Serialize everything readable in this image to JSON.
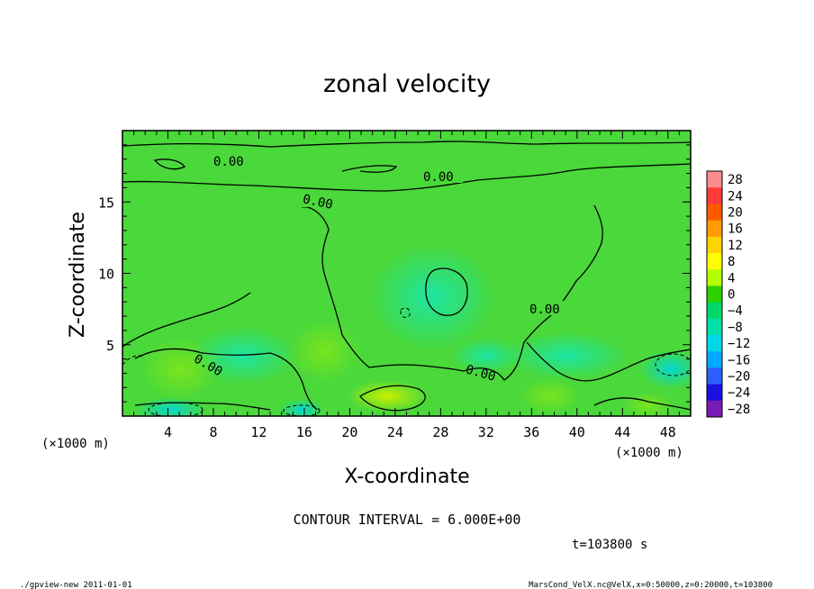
{
  "chart_data": {
    "type": "heatmap",
    "title": "zonal velocity",
    "xlabel": "X-coordinate",
    "ylabel": "Z-coordinate",
    "x_unit": "(×1000 m)",
    "y_unit": "(×1000 m)",
    "xlim": [
      0,
      50
    ],
    "ylim": [
      0,
      20
    ],
    "x_ticks": [
      4,
      8,
      12,
      16,
      20,
      24,
      28,
      32,
      36,
      40,
      44,
      48
    ],
    "y_ticks": [
      5,
      10,
      15
    ],
    "colorbar": {
      "levels": [
        28,
        24,
        20,
        16,
        12,
        8,
        4,
        0,
        -4,
        -8,
        -12,
        -16,
        -20,
        -24,
        -28
      ],
      "colors": [
        "#ff8c8c",
        "#ff3b3b",
        "#ff5a00",
        "#ff9a00",
        "#ffd200",
        "#ffff00",
        "#b4ff00",
        "#2fd000",
        "#00d86a",
        "#00e0a8",
        "#00d8e8",
        "#00a8ff",
        "#2b60ff",
        "#1a10e0",
        "#7a1ab4"
      ]
    },
    "contour_labels": [
      "0.00",
      "0.00",
      "0.00",
      "0.00",
      "0.00",
      "0.00"
    ],
    "contour_interval_text": "CONTOUR INTERVAL = 6.000E+00",
    "time_text": "t=103800 s"
  },
  "footer": {
    "left": "./gpview-new 2011-01-01",
    "right": "MarsCond_VelX.nc@VelX,x=0:50000,z=0:20000,t=103800"
  }
}
